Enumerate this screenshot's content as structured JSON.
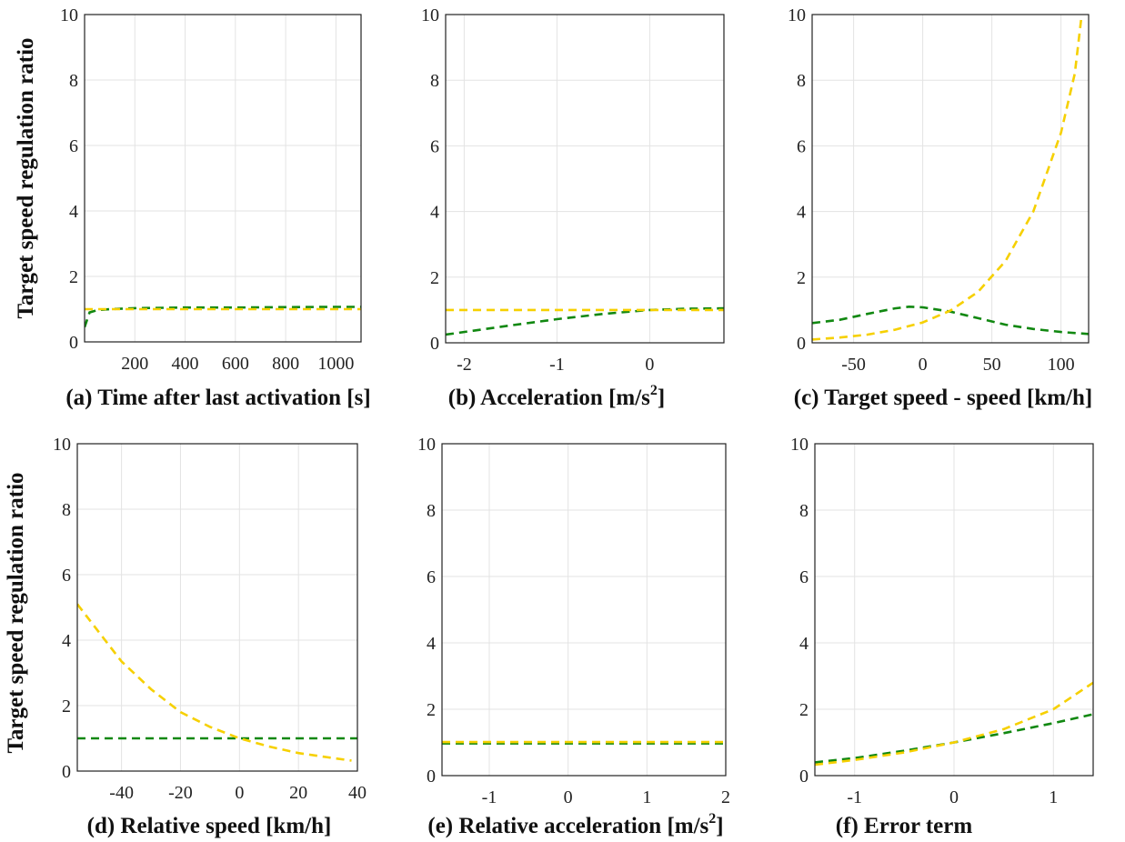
{
  "figure": {
    "ylabel": "Target speed regulation ratio",
    "colors": {
      "green": "#118811",
      "yellow": "#f6d000"
    }
  },
  "chart_data": [
    {
      "type": "line",
      "panel": "a",
      "xlabel": "(a) Time after last activation [s]",
      "xlim": [
        0,
        1100
      ],
      "ylim": [
        0,
        10
      ],
      "xticks": [
        "200",
        "400",
        "600",
        "800",
        "1000"
      ],
      "xtick_values": [
        200,
        400,
        600,
        800,
        1000
      ],
      "yticks": [
        "0",
        "2",
        "4",
        "6",
        "8",
        "10"
      ],
      "series": [
        {
          "color": "#118811",
          "x": [
            0,
            20,
            50,
            100,
            200,
            400,
            600,
            800,
            1000,
            1100
          ],
          "y": [
            0.45,
            0.9,
            0.97,
            1.0,
            1.03,
            1.05,
            1.05,
            1.06,
            1.07,
            1.07
          ]
        },
        {
          "color": "#f6d000",
          "x": [
            0,
            1100
          ],
          "y": [
            1.0,
            1.0
          ]
        }
      ]
    },
    {
      "type": "line",
      "panel": "b",
      "xlabel": "(b)     Acceleration [m/s",
      "xlabel_sup": "2",
      "xlabel_suffix": "]",
      "xlim": [
        -2.2,
        0.8
      ],
      "ylim": [
        0,
        10
      ],
      "xticks": [
        "-2",
        "-1",
        "0"
      ],
      "xtick_values": [
        -2,
        -1,
        0
      ],
      "yticks": [
        "0",
        "2",
        "4",
        "6",
        "8",
        "10"
      ],
      "series": [
        {
          "color": "#118811",
          "x": [
            -2.2,
            -1.5,
            -1.0,
            -0.5,
            0,
            0.4,
            0.8
          ],
          "y": [
            0.25,
            0.53,
            0.72,
            0.88,
            1.0,
            1.04,
            1.05
          ]
        },
        {
          "color": "#f6d000",
          "x": [
            -2.2,
            0.8
          ],
          "y": [
            1.0,
            1.0
          ]
        }
      ]
    },
    {
      "type": "line",
      "panel": "c",
      "xlabel": "(c) Target speed - speed [km/h]",
      "xlim": [
        -80,
        120
      ],
      "ylim": [
        0,
        10
      ],
      "xticks": [
        "-50",
        "0",
        "50",
        "100"
      ],
      "xtick_values": [
        -50,
        0,
        50,
        100
      ],
      "yticks": [
        "0",
        "2",
        "4",
        "6",
        "8",
        "10"
      ],
      "series": [
        {
          "color": "#118811",
          "x": [
            -80,
            -60,
            -40,
            -20,
            -10,
            0,
            20,
            40,
            60,
            80,
            100,
            120
          ],
          "y": [
            0.6,
            0.7,
            0.88,
            1.05,
            1.1,
            1.08,
            0.95,
            0.75,
            0.55,
            0.42,
            0.33,
            0.27
          ]
        },
        {
          "color": "#f6d000",
          "x": [
            -80,
            -60,
            -40,
            -20,
            0,
            20,
            40,
            60,
            80,
            100,
            110,
            115
          ],
          "y": [
            0.1,
            0.16,
            0.25,
            0.4,
            0.62,
            0.98,
            1.55,
            2.5,
            4.0,
            6.4,
            8.2,
            10.0
          ]
        }
      ]
    },
    {
      "type": "line",
      "panel": "d",
      "xlabel": "(d)   Relative speed [km/h]",
      "xlim": [
        -55,
        40
      ],
      "ylim": [
        0,
        10
      ],
      "xticks": [
        "-40",
        "-20",
        "0",
        "20",
        "40"
      ],
      "xtick_values": [
        -40,
        -20,
        0,
        20,
        40
      ],
      "yticks": [
        "0",
        "2",
        "4",
        "6",
        "8",
        "10"
      ],
      "series": [
        {
          "color": "#118811",
          "x": [
            -55,
            40
          ],
          "y": [
            1.0,
            1.0
          ]
        },
        {
          "color": "#f6d000",
          "x": [
            -55,
            -40,
            -30,
            -20,
            -10,
            0,
            10,
            20,
            30,
            38
          ],
          "y": [
            5.1,
            3.35,
            2.5,
            1.8,
            1.35,
            1.0,
            0.75,
            0.55,
            0.42,
            0.32
          ]
        }
      ]
    },
    {
      "type": "line",
      "panel": "e",
      "xlabel": "(e) Relative acceleration [m/s",
      "xlabel_sup": "2",
      "xlabel_suffix": "]",
      "xlim": [
        -1.6,
        2
      ],
      "ylim": [
        0,
        10
      ],
      "xticks": [
        "-1",
        "0",
        "1",
        "2"
      ],
      "xtick_values": [
        -1,
        0,
        1,
        2
      ],
      "yticks": [
        "0",
        "2",
        "4",
        "6",
        "8",
        "10"
      ],
      "series": [
        {
          "color": "#118811",
          "x": [
            -1.6,
            2
          ],
          "y": [
            0.97,
            0.97
          ]
        },
        {
          "color": "#f6d000",
          "x": [
            -1.6,
            2
          ],
          "y": [
            1.01,
            1.01
          ]
        }
      ]
    },
    {
      "type": "line",
      "panel": "f",
      "xlabel": "(f)         Error term",
      "xlim": [
        -1.4,
        1.4
      ],
      "ylim": [
        0,
        10
      ],
      "xticks": [
        "-1",
        "0",
        "1"
      ],
      "xtick_values": [
        -1,
        0,
        1
      ],
      "yticks": [
        "0",
        "2",
        "4",
        "6",
        "8",
        "10"
      ],
      "series": [
        {
          "color": "#118811",
          "x": [
            -1.4,
            -1.0,
            -0.5,
            0,
            0.5,
            1.0,
            1.4
          ],
          "y": [
            0.4,
            0.53,
            0.75,
            1.0,
            1.28,
            1.58,
            1.85
          ]
        },
        {
          "color": "#f6d000",
          "x": [
            -1.4,
            -1.0,
            -0.5,
            0,
            0.5,
            1.0,
            1.4
          ],
          "y": [
            0.33,
            0.47,
            0.7,
            1.0,
            1.4,
            2.0,
            2.8
          ]
        }
      ]
    }
  ]
}
